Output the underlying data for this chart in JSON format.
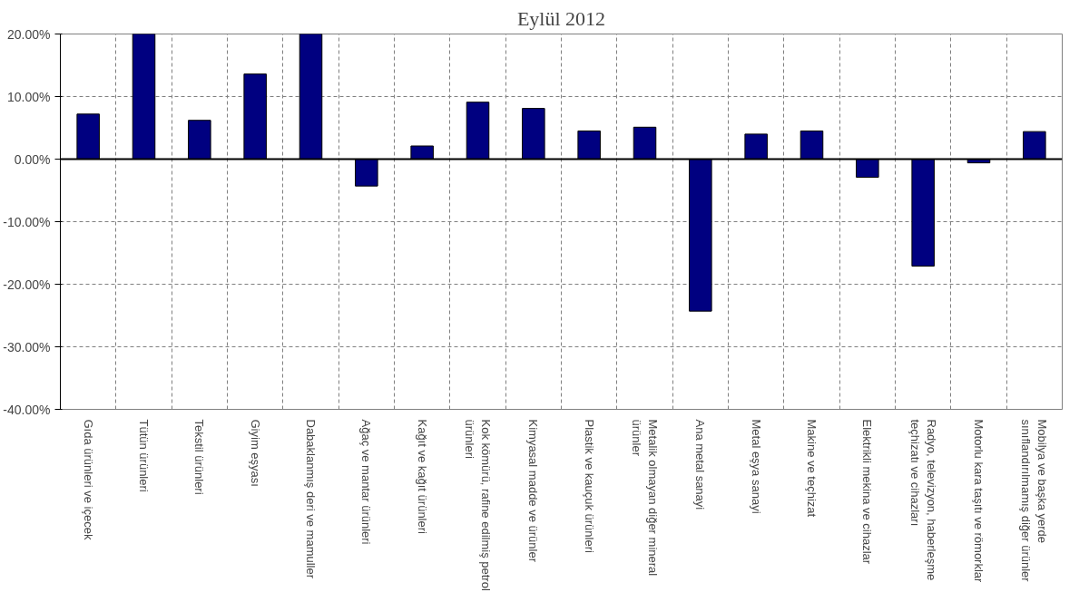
{
  "chart_data": {
    "type": "bar",
    "title": "Eylül 2012",
    "categories": [
      "Gıda ürünleri ve içecek",
      "Tütün ürünleri",
      "Tekstil ürünleri",
      "Giyim eşyası",
      "Dabaklanmış deri ve mamuller",
      "Ağaç ve mantar ürünleri",
      "Kağıt ve kağıt ürünleri",
      "Kok kömürü, rafine edilmiş petrol\nürünleri",
      "Kimyasal madde ve ürünler",
      "Plastik ve kauçuk ürünleri",
      "Metalik olmayan diğer mineral\nürünler",
      "Ana metal sanayi",
      "Metal eşya sanayi",
      "Makine ve teçhizat",
      "Elektrikli mekina ve cihazlar",
      "Radyo, televizyon, haberleşme\nteçhizatı ve cihazları",
      "Motorlu kara taşıtı ve römorklar",
      "Mobilya ve başka yerde\nsınıflandırılmamış diğer ürünler"
    ],
    "values": [
      7.2,
      20,
      6.2,
      13.6,
      20,
      -4.3,
      2.1,
      9.1,
      8.1,
      4.5,
      5.1,
      -24.3,
      4.0,
      4.5,
      -2.9,
      -17.1,
      -0.6,
      4.4
    ],
    "color": "#000080",
    "ylim": [
      -40,
      20
    ],
    "yticks": [
      {
        "value": -40,
        "label": "-40.00%"
      },
      {
        "value": -30,
        "label": "-30.00%"
      },
      {
        "value": -20,
        "label": "-20.00%"
      },
      {
        "value": -10,
        "label": "-10.00%"
      },
      {
        "value": 0,
        "label": "0.00%"
      },
      {
        "value": 10,
        "label": "10.00%"
      },
      {
        "value": 20,
        "label": "20.00%"
      }
    ],
    "grid": true
  }
}
